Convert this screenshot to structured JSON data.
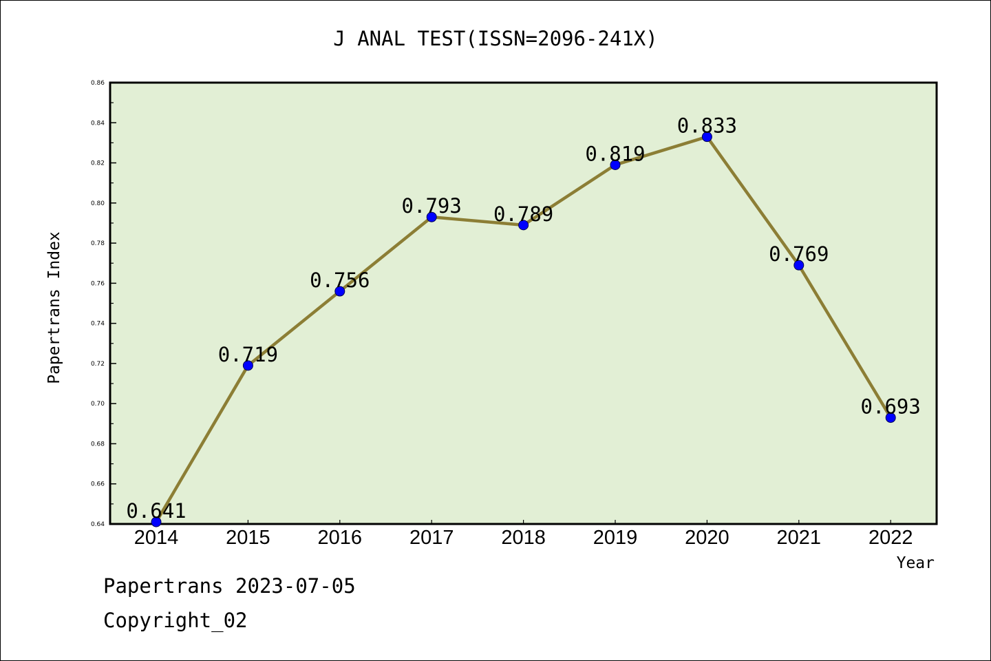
{
  "chart_data": {
    "type": "line",
    "title": "J ANAL TEST(ISSN=2096-241X)",
    "xlabel": "Year",
    "ylabel": "Papertrans Index",
    "categories": [
      "2014",
      "2015",
      "2016",
      "2017",
      "2018",
      "2019",
      "2020",
      "2021",
      "2022"
    ],
    "series": [
      {
        "values": [
          0.641,
          0.719,
          0.756,
          0.793,
          0.789,
          0.819,
          0.833,
          0.769,
          0.693
        ]
      }
    ],
    "data_labels": [
      "0.641",
      "0.719",
      "0.756",
      "0.793",
      "0.789",
      "0.819",
      "0.833",
      "0.769",
      "0.693"
    ],
    "ylim": [
      0.64,
      0.86
    ],
    "yticks": [
      "0.64",
      "0.66",
      "0.68",
      "0.70",
      "0.72",
      "0.74",
      "0.76",
      "0.78",
      "0.80",
      "0.82",
      "0.84",
      "0.86"
    ],
    "grid": false,
    "legend": "none",
    "colors": {
      "line": "#8C7E35",
      "marker": "#0000FF",
      "plot_background": "#E2EFD5",
      "axes": "#000000"
    }
  },
  "footer": {
    "source": "Papertrans 2023-07-05",
    "copyright": "Copyright_02"
  }
}
